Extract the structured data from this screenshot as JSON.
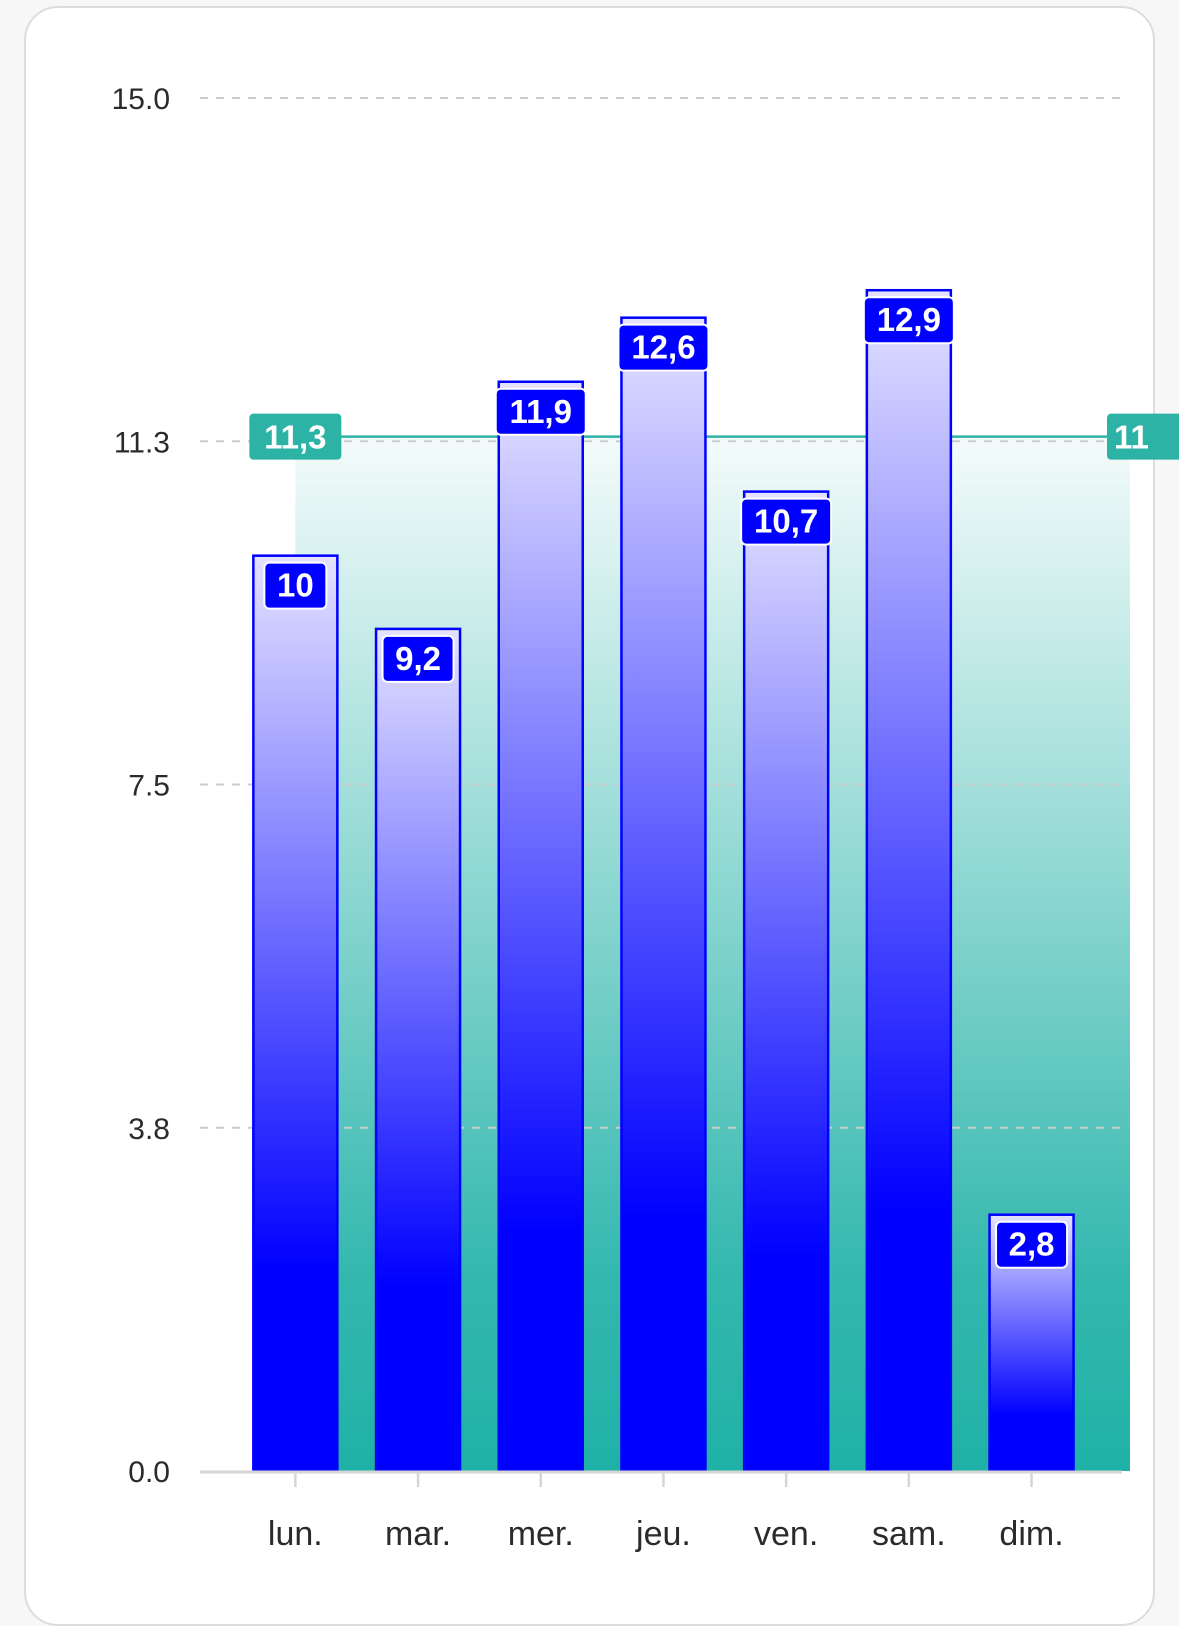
{
  "colors": {
    "bar": "#0000ff",
    "bar_light": "#e4e2ff",
    "average_line": "#2db3a5",
    "average_fill_bottom": "#1fb1a6",
    "grid": "#cccccc",
    "axis": "#d6d6d6",
    "text": "#2b2b2b",
    "card_border": "#dcdcdc"
  },
  "chart_data": {
    "type": "bar",
    "categories": [
      "lun.",
      "mar.",
      "mer.",
      "jeu.",
      "ven.",
      "sam.",
      "dim."
    ],
    "values": [
      10,
      9.2,
      11.9,
      12.6,
      10.7,
      12.9,
      2.8
    ],
    "value_labels": [
      "10",
      "9,2",
      "11,9",
      "12,6",
      "10,7",
      "12,9",
      "2,8"
    ],
    "ylim": [
      0,
      15
    ],
    "yticks": [
      "0.0",
      "3.8",
      "7.5",
      "11.3",
      "15.0"
    ],
    "ytick_values": [
      0,
      3.75,
      7.5,
      11.25,
      15
    ],
    "average": {
      "value": 11.3,
      "label_left": "11,3",
      "label_right": "11"
    },
    "grid": "horizontal dashed",
    "legend": "none",
    "title": "",
    "xlabel": "",
    "ylabel": ""
  }
}
